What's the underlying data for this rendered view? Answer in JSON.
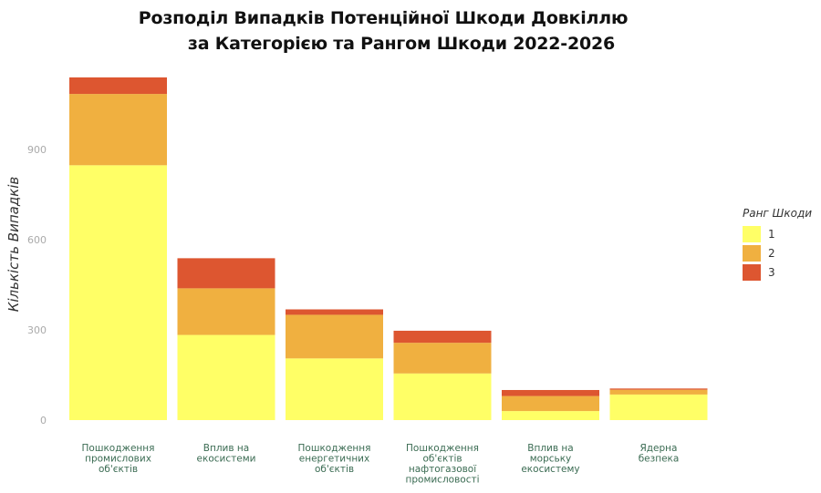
{
  "chart_data": {
    "type": "bar",
    "stacked": true,
    "title_line1": "Розподіл Випадків Потенційної Шкоди Довкіллю",
    "title_line2": "за Категорією та Рангом Шкоди 2022-2026",
    "ylabel": "Кількість Випадків",
    "xlabel": "",
    "ylim": [
      0,
      1160
    ],
    "yticks": [
      0,
      300,
      600,
      900
    ],
    "grid": false,
    "categories": [
      [
        "Пошкодження",
        "промислових",
        "об'єктів"
      ],
      [
        "Вплив на",
        "екосистеми"
      ],
      [
        "Пошкодження",
        "енергетичних",
        "об'єктів"
      ],
      [
        "Пошкодження",
        "об'єктів",
        "нафтогазової",
        "промисловості"
      ],
      [
        "Вплив на",
        "морську",
        "екосистему"
      ],
      [
        "Ядерна",
        "безпека"
      ]
    ],
    "legend_title": "Ранг Шкоди",
    "legend_position": "right",
    "series": [
      {
        "name": "1",
        "color": "#ffff66",
        "values": [
          847,
          283,
          205,
          155,
          30,
          85
        ]
      },
      {
        "name": "2",
        "color": "#f0b040",
        "values": [
          237,
          155,
          145,
          102,
          50,
          16
        ]
      },
      {
        "name": "3",
        "color": "#dd5630",
        "values": [
          55,
          100,
          18,
          40,
          20,
          4
        ]
      }
    ]
  }
}
